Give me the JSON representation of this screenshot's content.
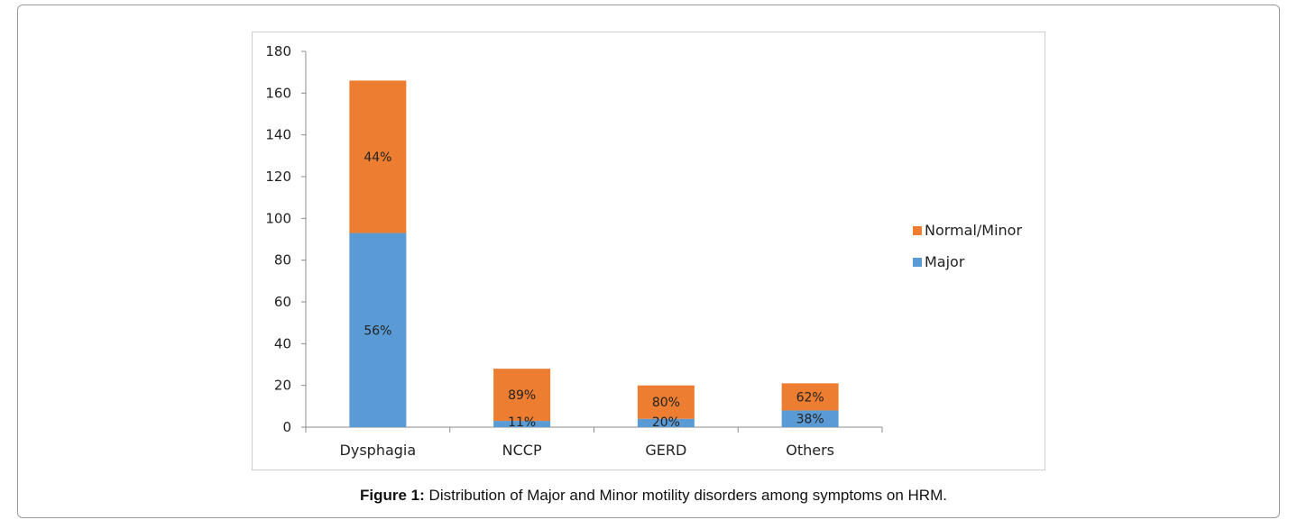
{
  "figure": {
    "label": "Figure 1:",
    "caption": "Distribution of Major and Minor motility disorders among symptoms on HRM."
  },
  "chart_data": {
    "type": "bar",
    "stacked": true,
    "title": "",
    "xlabel": "",
    "ylabel": "",
    "categories": [
      "Dysphagia",
      "NCCP",
      "GERD",
      "Others"
    ],
    "ylim": [
      0,
      180
    ],
    "yticks": [
      0,
      20,
      40,
      60,
      80,
      100,
      120,
      140,
      160,
      180
    ],
    "grid": false,
    "legend_position": "right",
    "series": [
      {
        "name": "Major",
        "color": "#5b9bd5",
        "values": [
          93,
          3,
          4,
          8
        ],
        "labels": [
          "56%",
          "11%",
          "20%",
          "38%"
        ]
      },
      {
        "name": "Normal/Minor",
        "color": "#ed7d31",
        "values": [
          73,
          25,
          16,
          13
        ],
        "labels": [
          "44%",
          "89%",
          "80%",
          "62%"
        ]
      }
    ],
    "legend_order": [
      "Normal/Minor",
      "Major"
    ]
  }
}
